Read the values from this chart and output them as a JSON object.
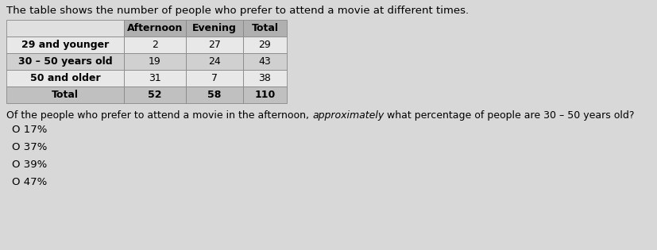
{
  "title": "The table shows the number of people who prefer to attend a movie at different times.",
  "title_fontsize": 9.5,
  "table_headers": [
    "",
    "Afternoon",
    "Evening",
    "Total"
  ],
  "table_rows": [
    [
      "29 and younger",
      "2",
      "27",
      "29"
    ],
    [
      "30 – 50 years old",
      "19",
      "24",
      "43"
    ],
    [
      "50 and older",
      "31",
      "7",
      "38"
    ],
    [
      "Total",
      "52",
      "58",
      "110"
    ]
  ],
  "question_parts": [
    {
      "text": "Of the people who prefer to attend a movie in the afternoon, ",
      "italic": false
    },
    {
      "text": "approximately",
      "italic": true
    },
    {
      "text": " what percentage of people are 30 – 50 years old?",
      "italic": false
    }
  ],
  "question_fontsize": 9.0,
  "choices": [
    "O 17%",
    "O 37%",
    "O 39%",
    "O 47%"
  ],
  "choices_fontsize": 9.5,
  "header_bg": "#b0b0b0",
  "row_bg_light": "#e8e8e8",
  "row_bg_mid": "#d0d0d0",
  "total_row_bg": "#c0c0c0",
  "cell_empty_bg": "#e0e0e0",
  "text_color": "#000000",
  "page_bg": "#d8d8d8",
  "border_color": "#888888"
}
